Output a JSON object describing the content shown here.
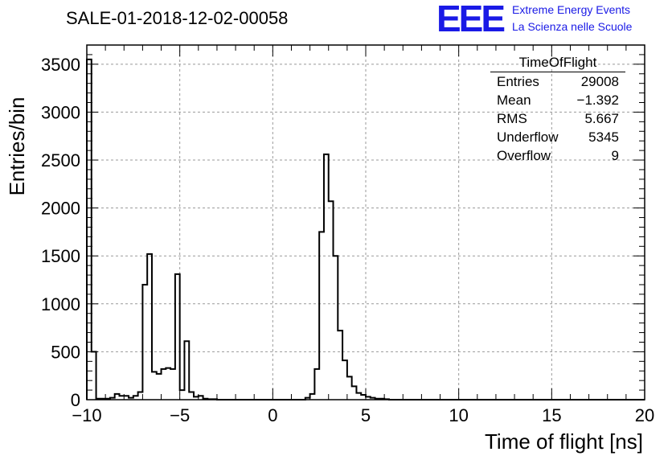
{
  "title": "SALE-01-2018-12-02-00058",
  "logo": {
    "text": "EEE",
    "line1": "Extreme Energy Events",
    "line2": "La Scienza nelle Scuole",
    "color": "#1a1ae6"
  },
  "stats": {
    "title": "TimeOfFlight",
    "rows": [
      {
        "label": "Entries",
        "value": "29008"
      },
      {
        "label": "Mean",
        "value": "−1.392"
      },
      {
        "label": "RMS",
        "value": "5.667"
      },
      {
        "label": "Underflow",
        "value": "5345"
      },
      {
        "label": "Overflow",
        "value": "9"
      }
    ]
  },
  "chart_data": {
    "type": "bar",
    "histogram": true,
    "xlabel": "Time of flight [ns]",
    "ylabel": "Entries/bin",
    "xlim": [
      -10,
      20
    ],
    "ylim": [
      0,
      3700
    ],
    "xticks": [
      -10,
      -5,
      0,
      5,
      10,
      15,
      20
    ],
    "yticks": [
      0,
      500,
      1000,
      1500,
      2000,
      2500,
      3000,
      3500
    ],
    "grid": true,
    "bin_width": 0.25,
    "x_start": -10,
    "values": [
      3550,
      500,
      10,
      10,
      10,
      20,
      60,
      40,
      40,
      20,
      40,
      80,
      1200,
      1520,
      290,
      270,
      320,
      330,
      320,
      1310,
      100,
      610,
      80,
      30,
      40,
      10,
      5,
      5,
      0,
      0,
      0,
      0,
      0,
      0,
      0,
      0,
      0,
      0,
      0,
      0,
      0,
      0,
      0,
      0,
      0,
      0,
      0,
      20,
      60,
      320,
      1750,
      2560,
      2070,
      1500,
      720,
      410,
      240,
      140,
      70,
      50,
      30,
      20,
      10,
      10,
      5,
      0,
      0,
      0,
      0,
      0,
      0,
      0,
      0,
      0,
      0,
      0,
      0,
      0,
      0,
      0,
      0,
      0,
      0,
      0,
      0,
      0,
      0,
      0,
      0,
      0,
      0,
      0,
      0,
      0,
      0,
      0,
      0,
      0,
      0,
      0,
      0,
      0,
      0,
      0,
      0,
      0,
      0,
      0,
      0,
      0,
      0,
      0,
      0,
      0,
      0,
      0,
      0,
      0,
      0,
      0
    ]
  }
}
